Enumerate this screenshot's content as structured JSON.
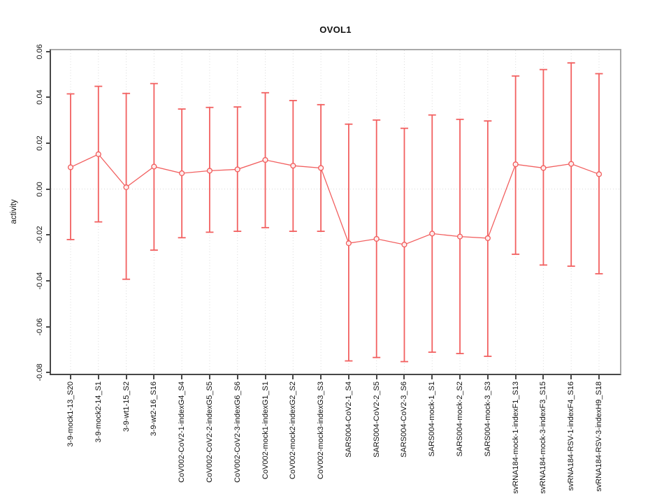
{
  "chart_data": {
    "type": "line",
    "subtype": "point-estimates-with-error-bars",
    "title": "OVOL1",
    "xlabel": "",
    "ylabel": "activity",
    "ylim": [
      -0.08,
      0.06
    ],
    "yticks": [
      0.06,
      0.04,
      0.02,
      0.0,
      -0.02,
      -0.04,
      -0.06,
      -0.08
    ],
    "grid": {
      "vertical_at_categories": true,
      "horizontal_at_zero": true,
      "line_style": "dotted"
    },
    "legend": "none",
    "marker": "open-circle",
    "categories": [
      "3-9-mock1-13_S20",
      "3-9-mock2-14_S1",
      "3-9-wt1-15_S2",
      "3-9-wt2-16_S16",
      "CoV002-CoV2-1-indexG4_S4",
      "CoV002-CoV2-2-indexG5_S5",
      "CoV002-CoV2-3-indexG6_S6",
      "CoV002-mock1-indexG1_S1",
      "CoV002-mock2-indexG2_S2",
      "CoV002-mock3-indexG3_S3",
      "SARS004-CoV2-1_S4",
      "SARS004-CoV2-2_S5",
      "SARS004-CoV2-3_S6",
      "SARS004-mock-1_S1",
      "SARS004-mock-2_S2",
      "SARS004-mock-3_S3",
      "svRNA184-mock-1-indexF1_S13",
      "svRNA184-mock-3-indexF3_S15",
      "svRNA184-RSV-1-indexF4_S16",
      "svRNA184-RSV-3-indexH9_S18"
    ],
    "series": [
      {
        "name": "activity",
        "values": [
          0.0095,
          0.0152,
          0.0008,
          0.0098,
          0.0069,
          0.008,
          0.0086,
          0.0127,
          0.0102,
          0.0092,
          -0.0236,
          -0.0217,
          -0.0242,
          -0.0194,
          -0.0207,
          -0.0214,
          0.0108,
          0.0092,
          0.011,
          0.0065
        ],
        "ci_low": [
          -0.022,
          -0.0143,
          -0.0393,
          -0.0266,
          -0.0212,
          -0.0188,
          -0.0184,
          -0.0168,
          -0.0184,
          -0.0184,
          -0.0749,
          -0.0734,
          -0.0752,
          -0.0711,
          -0.0717,
          -0.0729,
          -0.0284,
          -0.0331,
          -0.0336,
          -0.0369
        ],
        "ci_high": [
          0.0415,
          0.0448,
          0.0417,
          0.046,
          0.0349,
          0.0356,
          0.0358,
          0.042,
          0.0386,
          0.0368,
          0.0283,
          0.0301,
          0.0265,
          0.0323,
          0.0304,
          0.0297,
          0.0493,
          0.0521,
          0.055,
          0.0503
        ]
      }
    ],
    "colors": {
      "series": "#f26060",
      "grid": "#dcdcdc",
      "zero_line": "#d8d8d8",
      "axis": "#474747",
      "box": "#a9a9a9",
      "text": "#111111",
      "background": "#ffffff"
    }
  }
}
